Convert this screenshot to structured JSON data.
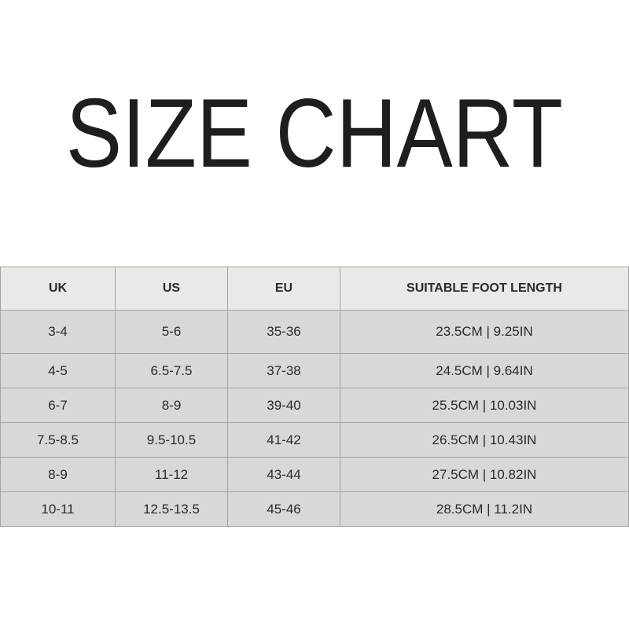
{
  "title": "SIZE CHART",
  "table": {
    "headers": [
      "UK",
      "US",
      "EU",
      "SUITABLE FOOT LENGTH"
    ],
    "rows": [
      [
        "3-4",
        "5-6",
        "35-36",
        "23.5CM | 9.25IN"
      ],
      [
        "4-5",
        "6.5-7.5",
        "37-38",
        "24.5CM | 9.64IN"
      ],
      [
        "6-7",
        "8-9",
        "39-40",
        "25.5CM | 10.03IN"
      ],
      [
        "7.5-8.5",
        "9.5-10.5",
        "41-42",
        "26.5CM | 10.43IN"
      ],
      [
        "8-9",
        "11-12",
        "43-44",
        "27.5CM | 10.82IN"
      ],
      [
        "10-11",
        "12.5-13.5",
        "45-46",
        "28.5CM | 11.2IN"
      ]
    ]
  }
}
